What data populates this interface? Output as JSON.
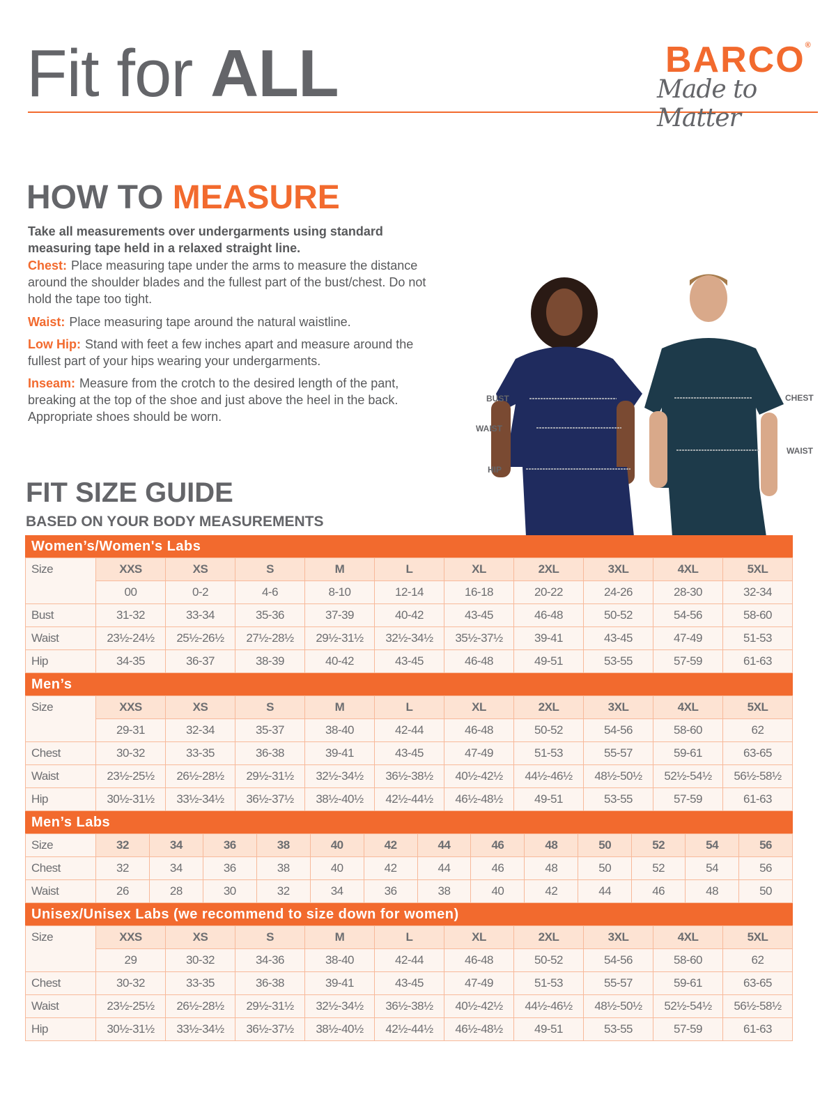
{
  "header": {
    "title_regular": "Fit for ",
    "title_bold": "ALL",
    "logo_brand": "BARCO",
    "logo_registered": "®",
    "logo_tagline": "Made to Matter",
    "accent_color": "#f26a2e"
  },
  "how_to_measure": {
    "heading_plain": "HOW TO ",
    "heading_accent": "MEASURE",
    "intro": "Take all measurements over undergarments using standard measuring tape held in a relaxed straight line.",
    "items": [
      {
        "label": "Chest:",
        "text": "Place measuring tape under the arms to measure the distance around the shoulder blades and the fullest part of the bust/chest. Do not hold the tape too tight."
      },
      {
        "label": "Waist:",
        "text": "Place measuring tape around the natural waistline."
      },
      {
        "label": "Low Hip:",
        "text": "Stand with feet a few inches apart and measure around the fullest part of your hips wearing your undergarments."
      },
      {
        "label": "Inseam:",
        "text": "Measure from the crotch to the desired length of the pant, breaking at the top of the shoe and just above the heel in the back. Appropriate shoes should be worn."
      }
    ]
  },
  "figure": {
    "women_labels": [
      "BUST",
      "WAIST",
      "HIP"
    ],
    "men_labels": [
      "CHEST",
      "WAIST"
    ],
    "women_scrub_color": "#1f2b5e",
    "men_scrub_color": "#1d3a4a"
  },
  "fit_guide": {
    "heading": "FIT SIZE GUIDE",
    "subheading": "BASED ON YOUR BODY MEASUREMENTS",
    "tables": [
      {
        "title": "Women’s/Women's Labs",
        "size_label": "Size",
        "sizes": [
          "XXS",
          "XS",
          "S",
          "M",
          "L",
          "XL",
          "2XL",
          "3XL",
          "4XL",
          "5XL"
        ],
        "numeric_sizes": [
          "00",
          "0-2",
          "4-6",
          "8-10",
          "12-14",
          "16-18",
          "20-22",
          "24-26",
          "28-30",
          "32-34"
        ],
        "rows": [
          {
            "label": "Bust",
            "values": [
              "31-32",
              "33-34",
              "35-36",
              "37-39",
              "40-42",
              "43-45",
              "46-48",
              "50-52",
              "54-56",
              "58-60"
            ]
          },
          {
            "label": "Waist",
            "values": [
              "23½-24½",
              "25½-26½",
              "27½-28½",
              "29½-31½",
              "32½-34½",
              "35½-37½",
              "39-41",
              "43-45",
              "47-49",
              "51-53"
            ]
          },
          {
            "label": "Hip",
            "values": [
              "34-35",
              "36-37",
              "38-39",
              "40-42",
              "43-45",
              "46-48",
              "49-51",
              "53-55",
              "57-59",
              "61-63"
            ]
          }
        ]
      },
      {
        "title": "Men’s",
        "size_label": "Size",
        "sizes": [
          "XXS",
          "XS",
          "S",
          "M",
          "L",
          "XL",
          "2XL",
          "3XL",
          "4XL",
          "5XL"
        ],
        "numeric_sizes": [
          "29-31",
          "32-34",
          "35-37",
          "38-40",
          "42-44",
          "46-48",
          "50-52",
          "54-56",
          "58-60",
          "62"
        ],
        "rows": [
          {
            "label": "Chest",
            "values": [
              "30-32",
              "33-35",
              "36-38",
              "39-41",
              "43-45",
              "47-49",
              "51-53",
              "55-57",
              "59-61",
              "63-65"
            ]
          },
          {
            "label": "Waist",
            "values": [
              "23½-25½",
              "26½-28½",
              "29½-31½",
              "32½-34½",
              "36½-38½",
              "40½-42½",
              "44½-46½",
              "48½-50½",
              "52½-54½",
              "56½-58½"
            ]
          },
          {
            "label": "Hip",
            "values": [
              "30½-31½",
              "33½-34½",
              "36½-37½",
              "38½-40½",
              "42½-44½",
              "46½-48½",
              "49-51",
              "53-55",
              "57-59",
              "61-63"
            ]
          }
        ]
      },
      {
        "title": "Men’s Labs",
        "size_label": "Size",
        "sizes": [
          "32",
          "34",
          "36",
          "38",
          "40",
          "42",
          "44",
          "46",
          "48",
          "50",
          "52",
          "54",
          "56"
        ],
        "numeric_sizes": [],
        "rows": [
          {
            "label": "Chest",
            "values": [
              "32",
              "34",
              "36",
              "38",
              "40",
              "42",
              "44",
              "46",
              "48",
              "50",
              "52",
              "54",
              "56"
            ]
          },
          {
            "label": "Waist",
            "values": [
              "26",
              "28",
              "30",
              "32",
              "34",
              "36",
              "38",
              "40",
              "42",
              "44",
              "46",
              "48",
              "50"
            ]
          }
        ]
      },
      {
        "title": "Unisex/Unisex Labs (we recommend to size down for women)",
        "size_label": "Size",
        "sizes": [
          "XXS",
          "XS",
          "S",
          "M",
          "L",
          "XL",
          "2XL",
          "3XL",
          "4XL",
          "5XL"
        ],
        "numeric_sizes": [
          "29",
          "30-32",
          "34-36",
          "38-40",
          "42-44",
          "46-48",
          "50-52",
          "54-56",
          "58-60",
          "62"
        ],
        "rows": [
          {
            "label": "Chest",
            "values": [
              "30-32",
              "33-35",
              "36-38",
              "39-41",
              "43-45",
              "47-49",
              "51-53",
              "55-57",
              "59-61",
              "63-65"
            ]
          },
          {
            "label": "Waist",
            "values": [
              "23½-25½",
              "26½-28½",
              "29½-31½",
              "32½-34½",
              "36½-38½",
              "40½-42½",
              "44½-46½",
              "48½-50½",
              "52½-54½",
              "56½-58½"
            ]
          },
          {
            "label": "Hip",
            "values": [
              "30½-31½",
              "33½-34½",
              "36½-37½",
              "38½-40½",
              "42½-44½",
              "46½-48½",
              "49-51",
              "53-55",
              "57-59",
              "61-63"
            ]
          }
        ]
      }
    ]
  }
}
